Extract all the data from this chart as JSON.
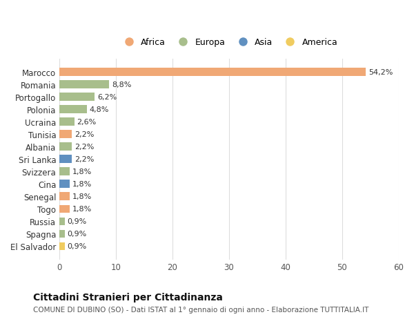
{
  "countries": [
    "Marocco",
    "Romania",
    "Portogallo",
    "Polonia",
    "Ucraina",
    "Tunisia",
    "Albania",
    "Sri Lanka",
    "Svizzera",
    "Cina",
    "Senegal",
    "Togo",
    "Russia",
    "Spagna",
    "El Salvador"
  ],
  "values": [
    54.2,
    8.8,
    6.2,
    4.8,
    2.6,
    2.2,
    2.2,
    2.2,
    1.8,
    1.8,
    1.8,
    1.8,
    0.9,
    0.9,
    0.9
  ],
  "labels": [
    "54,2%",
    "8,8%",
    "6,2%",
    "4,8%",
    "2,6%",
    "2,2%",
    "2,2%",
    "2,2%",
    "1,8%",
    "1,8%",
    "1,8%",
    "1,8%",
    "0,9%",
    "0,9%",
    "0,9%"
  ],
  "continents": [
    "Africa",
    "Europa",
    "Europa",
    "Europa",
    "Europa",
    "Africa",
    "Europa",
    "Asia",
    "Europa",
    "Asia",
    "Africa",
    "Africa",
    "Europa",
    "Europa",
    "America"
  ],
  "continent_colors": {
    "Africa": "#F0A875",
    "Europa": "#A8BE8C",
    "Asia": "#6090C0",
    "America": "#F0CC60"
  },
  "legend_order": [
    "Africa",
    "Europa",
    "Asia",
    "America"
  ],
  "title": "Cittadini Stranieri per Cittadinanza",
  "subtitle": "COMUNE DI DUBINO (SO) - Dati ISTAT al 1° gennaio di ogni anno - Elaborazione TUTTITALIA.IT",
  "xlim": [
    0,
    60
  ],
  "xticks": [
    0,
    10,
    20,
    30,
    40,
    50,
    60
  ],
  "bg_color": "#ffffff",
  "grid_color": "#dddddd",
  "bar_height": 0.65
}
